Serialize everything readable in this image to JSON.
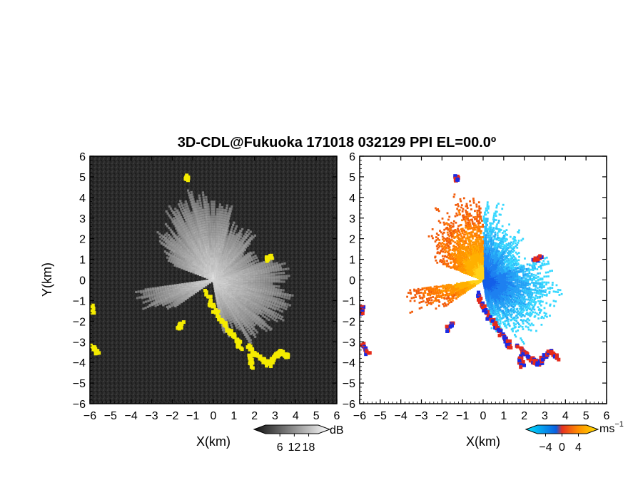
{
  "chart_data": {
    "title": "3D-CDL@Fukuoka 171018 032129 PPI EL=00.0º",
    "panels": [
      {
        "type": "heatmap",
        "quantity": "SNR",
        "xlabel": "X(km)",
        "ylabel": "Y(km)",
        "xlim": [
          -6,
          6
        ],
        "ylim": [
          -6,
          6
        ],
        "xticks": [
          -6,
          -5,
          -4,
          -3,
          -2,
          -1,
          0,
          1,
          2,
          3,
          4,
          5,
          6
        ],
        "yticks": [
          -6,
          -5,
          -4,
          -3,
          -2,
          -1,
          0,
          1,
          2,
          3,
          4,
          5,
          6
        ],
        "background_color": "#262626",
        "echo_color": "#d8d8d8",
        "clutter_color": "#f5ec00",
        "colorbar": {
          "unit": "dB",
          "ticks": [
            6,
            12,
            18
          ],
          "range": [
            0,
            22
          ],
          "colors": [
            "#111111",
            "#ffffff"
          ]
        }
      },
      {
        "type": "heatmap",
        "quantity": "Doppler velocity",
        "xlabel": "X(km)",
        "ylabel": "",
        "xlim": [
          -6,
          6
        ],
        "ylim": [
          -6,
          6
        ],
        "xticks": [
          -6,
          -5,
          -4,
          -3,
          -2,
          -1,
          0,
          1,
          2,
          3,
          4,
          5,
          6
        ],
        "yticks": [
          -6,
          -5,
          -4,
          -3,
          -2,
          -1,
          0,
          1,
          2,
          3,
          4,
          5,
          6
        ],
        "background_color": "#ffffff",
        "colorbar": {
          "unit": "ms",
          "unit_exponent": "−1",
          "ticks": [
            -4,
            0,
            4
          ],
          "range": [
            -6,
            6
          ],
          "colors": [
            "#00e5ff",
            "#0a5fe0",
            "#e53020",
            "#ff8c00",
            "#ffe000"
          ]
        }
      }
    ]
  }
}
